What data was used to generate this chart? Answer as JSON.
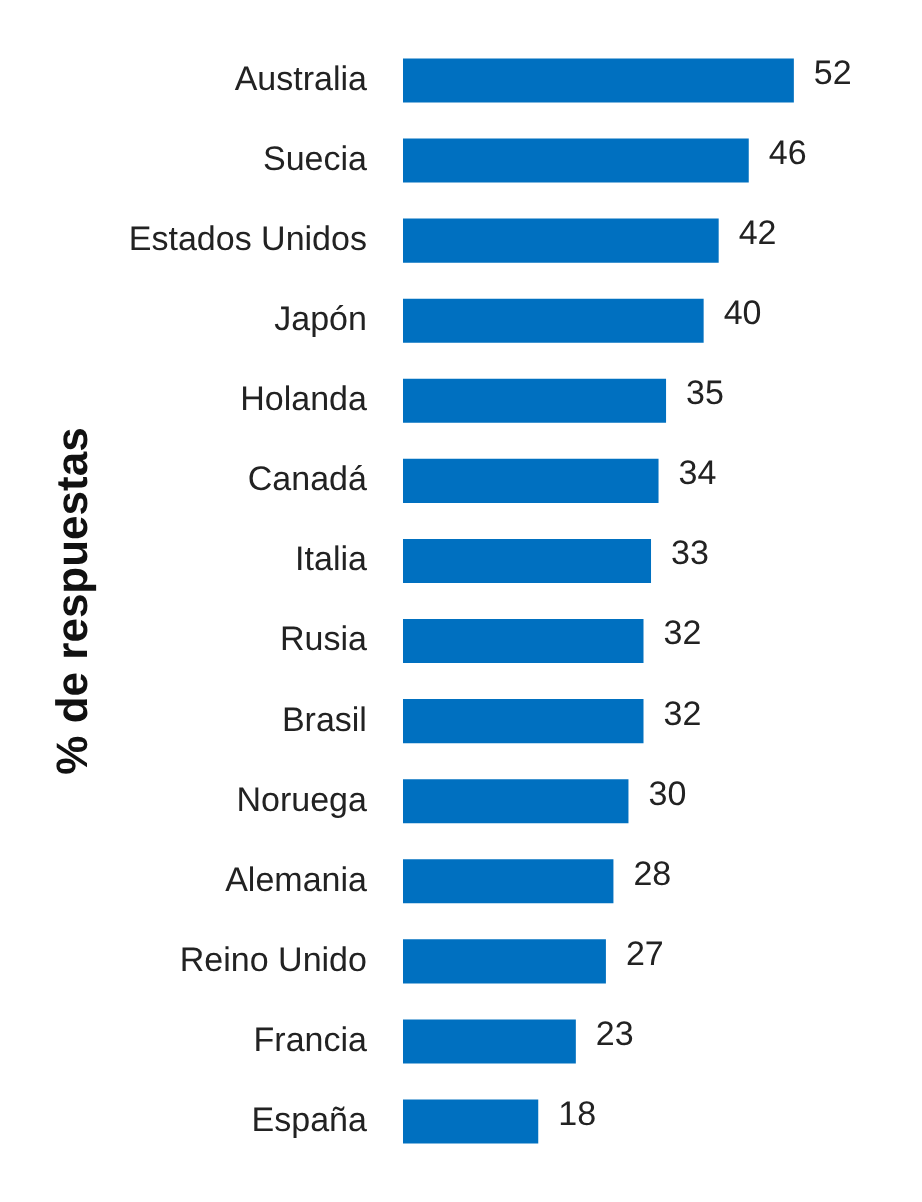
{
  "chart_data": {
    "type": "bar",
    "orientation": "horizontal",
    "ylabel": "% de respuestas",
    "categories": [
      "Australia",
      "Suecia",
      "Estados Unidos",
      "Japón",
      "Holanda",
      "Canadá",
      "Italia",
      "Rusia",
      "Brasil",
      "Noruega",
      "Alemania",
      "Reino Unido",
      "Francia",
      "España"
    ],
    "values": [
      52,
      46,
      42,
      40,
      35,
      34,
      33,
      32,
      32,
      30,
      28,
      27,
      23,
      18
    ],
    "color": "#0070c0",
    "data_labels": true
  }
}
